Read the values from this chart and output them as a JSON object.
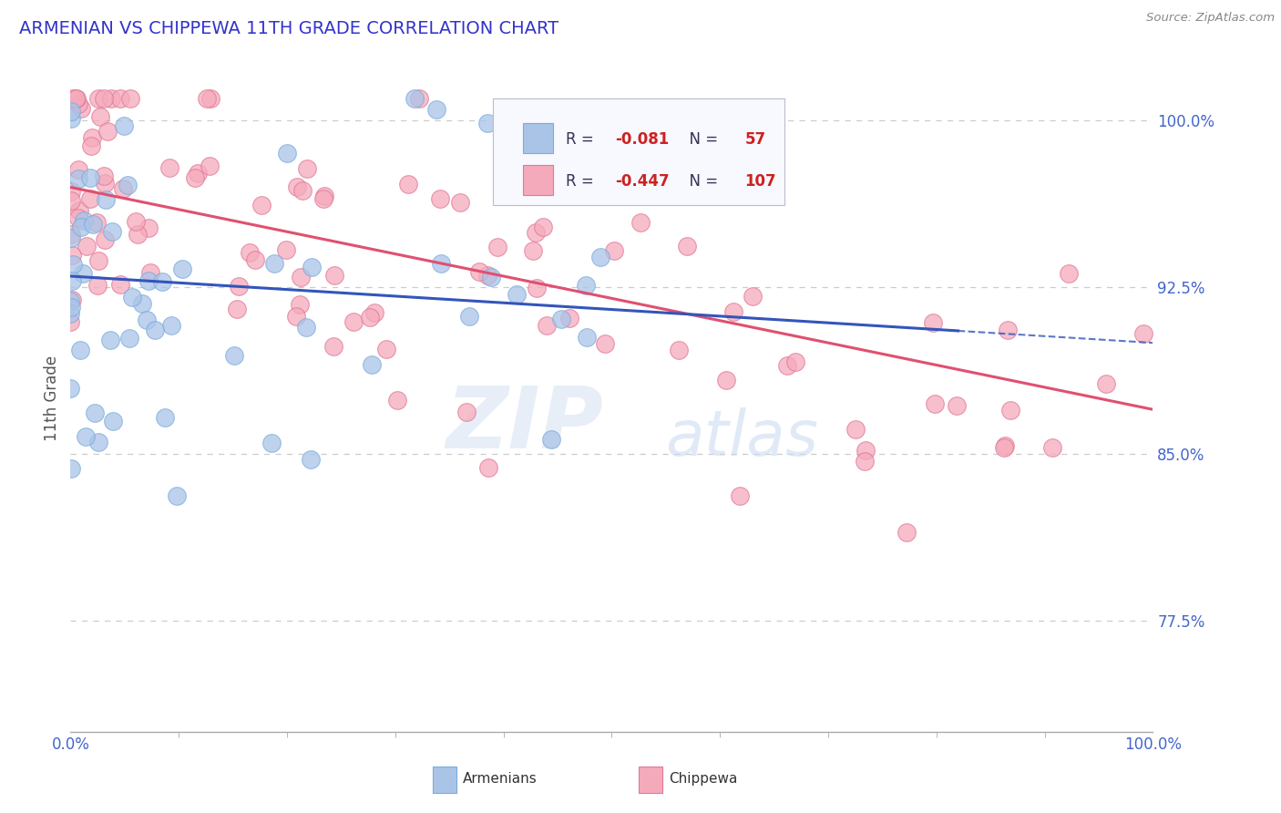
{
  "title": "ARMENIAN VS CHIPPEWA 11TH GRADE CORRELATION CHART",
  "title_color": "#3333cc",
  "source_text": "Source: ZipAtlas.com",
  "ylabel": "11th Grade",
  "watermark_zip": "ZIP",
  "watermark_atlas": "atlas",
  "legend_armenian_R": -0.081,
  "legend_armenian_N": 57,
  "legend_chippewa_R": -0.447,
  "legend_chippewa_N": 107,
  "armenian_color": "#aac4e8",
  "armenian_edge_color": "#7aacdc",
  "chippewa_color": "#f5aabb",
  "chippewa_edge_color": "#e07898",
  "trend_armenian_color": "#3355bb",
  "trend_chippewa_color": "#e05070",
  "background_color": "#ffffff",
  "grid_color": "#cccccc",
  "xlim": [
    0.0,
    1.0
  ],
  "ylim": [
    0.725,
    1.025
  ],
  "ytick_vals": [
    0.775,
    0.85,
    0.925,
    1.0
  ],
  "ytick_labels": [
    "77.5%",
    "85.0%",
    "92.5%",
    "100.0%"
  ],
  "xtick_vals": [
    0.0,
    1.0
  ],
  "xtick_labels": [
    "0.0%",
    "100.0%"
  ],
  "arm_trend_x0": 0.0,
  "arm_trend_y0": 0.93,
  "arm_trend_x1": 1.0,
  "arm_trend_y1": 0.9,
  "arm_trend_dashed_start": 0.82,
  "chip_trend_x0": 0.0,
  "chip_trend_y0": 0.97,
  "chip_trend_x1": 1.0,
  "chip_trend_y1": 0.87
}
